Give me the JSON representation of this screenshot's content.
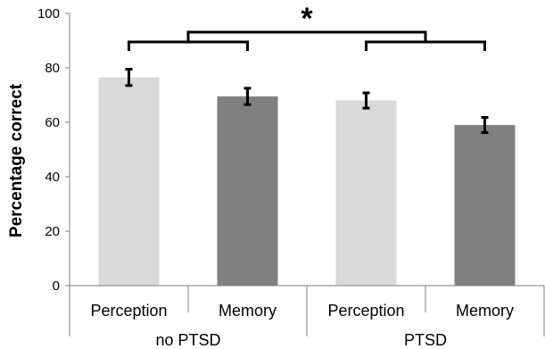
{
  "chart_data": {
    "type": "bar",
    "ylabel": "Percentage correct",
    "ylim": [
      0,
      100
    ],
    "y_ticks": [
      "0",
      "20",
      "40",
      "60",
      "80",
      "100"
    ],
    "groups": [
      "no PTSD",
      "PTSD"
    ],
    "categories": [
      "Perception",
      "Memory",
      "Perception",
      "Memory"
    ],
    "values": [
      76.5,
      69.5,
      68,
      59
    ],
    "error": [
      3,
      3,
      2.8,
      2.8
    ],
    "bar_colors": [
      "#d9d9d9",
      "#808080",
      "#d9d9d9",
      "#808080"
    ],
    "significance_marker": "*",
    "legend": false,
    "grid": false
  }
}
